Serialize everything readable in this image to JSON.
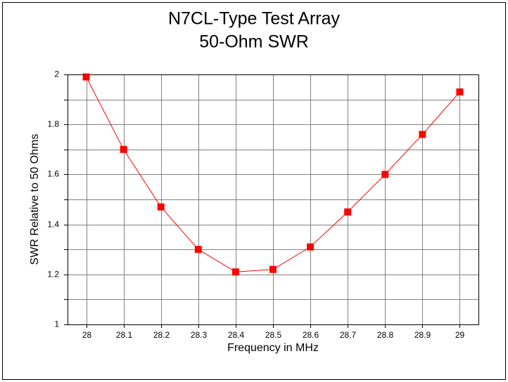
{
  "chart_data": {
    "type": "line",
    "title": "N7CL-Type Test Array",
    "subtitle": "50-Ohm SWR",
    "x_label": "Frequency in MHz",
    "y_label": "SWR Relative to 50 Ohms",
    "x": [
      28,
      28.1,
      28.2,
      28.3,
      28.4,
      28.5,
      28.6,
      28.7,
      28.8,
      28.9,
      29
    ],
    "series": [
      {
        "color": "#ff0000",
        "values": [
          1.99,
          1.7,
          1.47,
          1.3,
          1.21,
          1.22,
          1.31,
          1.45,
          1.6,
          1.76,
          1.93
        ]
      }
    ],
    "xlim": [
      27.95,
      29.05
    ],
    "xticks": [
      28,
      28.1,
      28.2,
      28.3,
      28.4,
      28.5,
      28.6,
      28.7,
      28.8,
      28.9,
      29
    ],
    "ylim": [
      1,
      2
    ],
    "yticks": [
      1,
      1.2,
      1.4,
      1.6,
      1.8,
      2
    ],
    "minor_yticks": [
      1.1,
      1.3,
      1.5,
      1.7,
      1.9
    ],
    "grid": true
  }
}
